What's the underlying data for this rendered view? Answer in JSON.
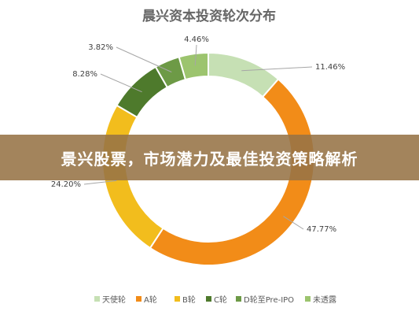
{
  "banner": {
    "text": "景兴股票，市场潜力及最佳投资策略解析"
  },
  "chart_data": {
    "type": "pie",
    "donut": true,
    "title": "晨兴资本投资轮次分布",
    "categories": [
      "天使轮",
      "A轮",
      "B轮",
      "C轮",
      "D轮至Pre-IPO",
      "未透露"
    ],
    "values": [
      11.46,
      47.77,
      24.2,
      8.28,
      3.82,
      4.46
    ],
    "labels": [
      "11.46%",
      "47.77%",
      "24.20%",
      "8.28%",
      "3.82%",
      "4.46%"
    ],
    "colors": [
      "#c6e0b4",
      "#f28c18",
      "#f2bd1d",
      "#4e7a2c",
      "#6d9a46",
      "#9cc46e"
    ],
    "legend_position": "bottom"
  }
}
